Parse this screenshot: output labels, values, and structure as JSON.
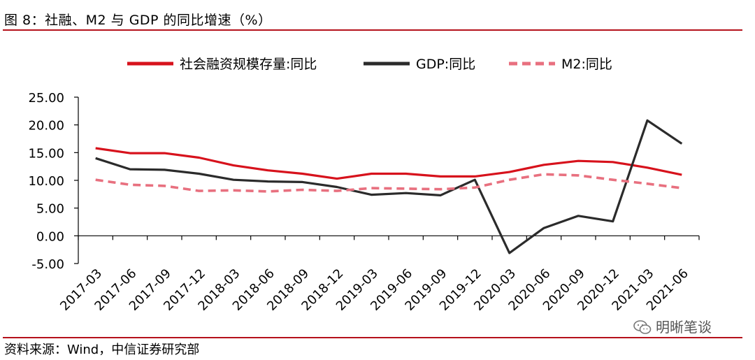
{
  "figure": {
    "title": "图 8：社融、M2 与 GDP 的同比增速（%）",
    "source": "资料来源：Wind，中信证券研究部",
    "watermark": "明晰笔谈"
  },
  "colors": {
    "rule": "#b5121b",
    "social_financing": "#d7121c",
    "gdp": "#2b2b2b",
    "m2": "#e8707f"
  },
  "chart_data": {
    "type": "line",
    "title": "",
    "xlabel": "",
    "ylabel": "",
    "categories": [
      "2017-03",
      "2017-06",
      "2017-09",
      "2017-12",
      "2018-03",
      "2018-06",
      "2018-09",
      "2018-12",
      "2019-03",
      "2019-06",
      "2019-09",
      "2019-12",
      "2020-03",
      "2020-06",
      "2020-09",
      "2020-12",
      "2021-03",
      "2021-06"
    ],
    "ylim": [
      -5,
      25
    ],
    "yticks": [
      "-5.00",
      "0.00",
      "5.00",
      "10.00",
      "15.00",
      "20.00",
      "25.00"
    ],
    "grid": false,
    "legend_position": "top",
    "series": [
      {
        "name": "社会融资规模存量:同比",
        "style": "solid",
        "color": "#d7121c",
        "values": [
          15.8,
          14.9,
          14.9,
          14.1,
          12.7,
          11.8,
          11.2,
          10.3,
          11.2,
          11.2,
          10.7,
          10.7,
          11.5,
          12.8,
          13.5,
          13.3,
          12.3,
          11.0
        ]
      },
      {
        "name": "GDP:同比",
        "style": "solid",
        "color": "#2b2b2b",
        "values": [
          14.0,
          12.0,
          11.9,
          11.2,
          10.1,
          9.8,
          9.7,
          8.8,
          7.4,
          7.7,
          7.3,
          10.1,
          -3.1,
          1.4,
          3.6,
          2.6,
          20.8,
          16.6
        ]
      },
      {
        "name": "M2:同比",
        "style": "dashed",
        "color": "#e8707f",
        "values": [
          10.1,
          9.2,
          9.0,
          8.1,
          8.2,
          8.0,
          8.3,
          8.1,
          8.6,
          8.5,
          8.4,
          8.7,
          10.1,
          11.1,
          10.9,
          10.1,
          9.4,
          8.6
        ]
      }
    ]
  }
}
